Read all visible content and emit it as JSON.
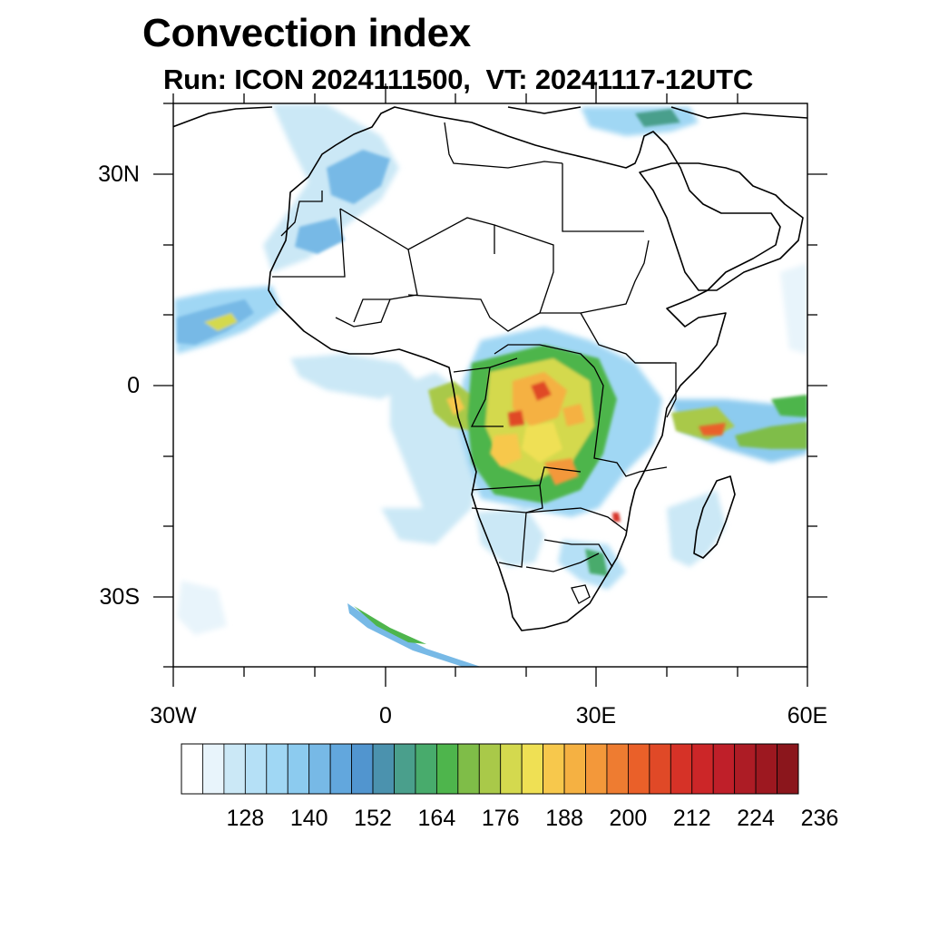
{
  "title": "Convection index",
  "subtitle": "Run: ICON 2024111500,  VT: 20241117-12UTC",
  "map": {
    "lat_labels": [
      "30N",
      "0",
      "30S"
    ],
    "lon_labels": [
      "30W",
      "0",
      "30E",
      "60E"
    ],
    "lon_range": [
      -30,
      60
    ],
    "lat_range": [
      -40,
      40
    ]
  },
  "colorbar": {
    "labels": [
      "128",
      "140",
      "152",
      "164",
      "176",
      "188",
      "200",
      "212",
      "224",
      "236"
    ],
    "colors": [
      "#ffffff",
      "#e8f4fb",
      "#cbe8f6",
      "#b5e0f6",
      "#a0d7f4",
      "#8ccbef",
      "#77b9e6",
      "#62a7dd",
      "#5195cf",
      "#4b92ae",
      "#4a9f8c",
      "#48ab6c",
      "#4eb54c",
      "#7fbd48",
      "#a9c949",
      "#d4d94e",
      "#efe054",
      "#f7c84c",
      "#f5b142",
      "#f3983a",
      "#ee7c31",
      "#ea6029",
      "#e04927",
      "#d63227",
      "#cc2628",
      "#bf1f29",
      "#ad1c25",
      "#9d1820",
      "#8b161c"
    ]
  }
}
